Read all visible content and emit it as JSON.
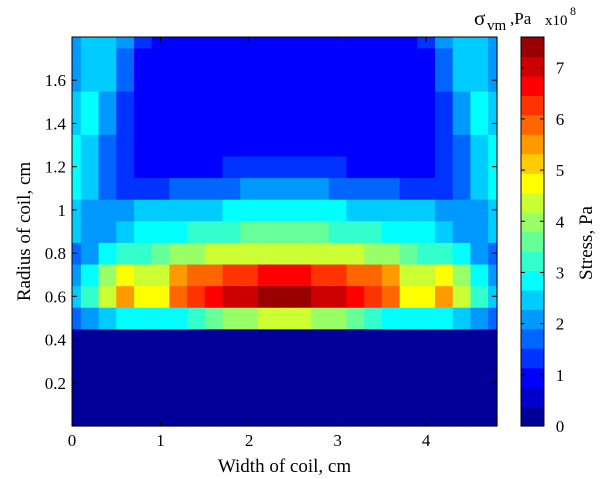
{
  "chart_data": {
    "type": "heatmap",
    "title": "",
    "xlabel": "Width of coil, cm",
    "ylabel": "Radius of coil, cm",
    "xlim": [
      0,
      4.8
    ],
    "ylim": [
      0,
      1.8
    ],
    "xticks": [
      0,
      1,
      2,
      3,
      4
    ],
    "yticks": [
      0.2,
      0.4,
      0.6,
      0.8,
      1,
      1.2,
      1.4,
      1.6
    ],
    "x": [
      0.0,
      0.2,
      0.4,
      0.6,
      0.8,
      1.0,
      1.2,
      1.4,
      1.6,
      1.8,
      2.0,
      2.2,
      2.4,
      2.6,
      2.8,
      3.0,
      3.2,
      3.4,
      3.6,
      3.8,
      4.0,
      4.2,
      4.4,
      4.6,
      4.8
    ],
    "y": [
      0.0,
      0.1,
      0.2,
      0.3,
      0.4,
      0.5,
      0.6,
      0.7,
      0.8,
      0.9,
      1.0,
      1.1,
      1.2,
      1.3,
      1.4,
      1.5,
      1.6,
      1.7,
      1.8
    ],
    "z_unit_multiplier": "1e8",
    "z": [
      [
        0.1,
        0.1,
        0.1,
        0.1,
        0.1,
        0.1,
        0.1,
        0.1,
        0.1,
        0.1,
        0.1,
        0.1,
        0.1,
        0.1,
        0.1,
        0.1,
        0.1,
        0.1,
        0.1,
        0.1,
        0.1,
        0.1,
        0.1,
        0.1,
        0.1
      ],
      [
        0.1,
        0.1,
        0.1,
        0.1,
        0.1,
        0.1,
        0.1,
        0.1,
        0.1,
        0.1,
        0.1,
        0.1,
        0.1,
        0.1,
        0.1,
        0.1,
        0.1,
        0.1,
        0.1,
        0.1,
        0.1,
        0.1,
        0.1,
        0.1,
        0.1
      ],
      [
        0.1,
        0.1,
        0.1,
        0.1,
        0.1,
        0.1,
        0.1,
        0.1,
        0.1,
        0.1,
        0.1,
        0.1,
        0.1,
        0.1,
        0.1,
        0.1,
        0.1,
        0.1,
        0.1,
        0.1,
        0.1,
        0.1,
        0.1,
        0.1,
        0.1
      ],
      [
        0.1,
        0.1,
        0.1,
        0.1,
        0.1,
        0.1,
        0.1,
        0.1,
        0.1,
        0.1,
        0.1,
        0.1,
        0.1,
        0.1,
        0.1,
        0.1,
        0.1,
        0.1,
        0.1,
        0.1,
        0.1,
        0.1,
        0.1,
        0.1,
        0.1
      ],
      [
        0.1,
        0.1,
        0.1,
        0.1,
        0.1,
        0.1,
        0.1,
        0.1,
        0.1,
        0.1,
        0.1,
        0.1,
        0.1,
        0.1,
        0.1,
        0.1,
        0.1,
        0.1,
        0.1,
        0.1,
        0.1,
        0.1,
        0.1,
        0.1,
        0.1
      ],
      [
        1.8,
        2.0,
        2.6,
        3.0,
        2.8,
        2.8,
        3.0,
        3.2,
        3.5,
        3.8,
        4.0,
        4.2,
        4.2,
        4.2,
        4.0,
        3.8,
        3.5,
        3.2,
        3.0,
        2.8,
        2.8,
        3.0,
        2.6,
        2.0,
        1.8
      ],
      [
        2.4,
        3.2,
        4.5,
        5.6,
        4.8,
        4.8,
        6.0,
        6.3,
        6.6,
        6.9,
        7.2,
        7.4,
        7.4,
        7.4,
        7.2,
        6.9,
        6.6,
        6.3,
        6.0,
        4.8,
        4.8,
        5.6,
        4.5,
        3.2,
        2.4
      ],
      [
        2.2,
        3.0,
        4.0,
        4.8,
        4.4,
        4.5,
        5.4,
        5.7,
        6.0,
        6.2,
        6.4,
        6.6,
        6.6,
        6.6,
        6.4,
        6.2,
        6.0,
        5.7,
        5.4,
        4.5,
        4.4,
        4.8,
        4.0,
        3.0,
        2.2
      ],
      [
        1.8,
        2.2,
        2.8,
        3.2,
        3.4,
        3.5,
        3.8,
        4.0,
        4.2,
        4.3,
        4.4,
        4.5,
        4.5,
        4.5,
        4.4,
        4.3,
        4.2,
        4.0,
        3.8,
        3.5,
        3.4,
        3.2,
        2.8,
        2.2,
        1.8
      ],
      [
        2.4,
        2.1,
        2.2,
        2.5,
        2.8,
        2.9,
        3.0,
        3.2,
        3.3,
        3.4,
        3.5,
        3.6,
        3.6,
        3.6,
        3.5,
        3.4,
        3.3,
        3.2,
        3.0,
        2.9,
        2.8,
        2.5,
        2.2,
        2.1,
        2.4
      ],
      [
        2.6,
        2.2,
        2.0,
        2.0,
        2.3,
        2.4,
        2.4,
        2.5,
        2.6,
        2.7,
        2.8,
        2.9,
        2.9,
        2.9,
        2.8,
        2.7,
        2.6,
        2.5,
        2.4,
        2.4,
        2.3,
        2.0,
        2.0,
        2.2,
        2.6
      ],
      [
        2.8,
        2.4,
        1.6,
        1.4,
        1.4,
        1.5,
        1.6,
        1.7,
        1.8,
        1.8,
        1.9,
        2.0,
        2.0,
        2.0,
        1.9,
        1.8,
        1.8,
        1.7,
        1.6,
        1.5,
        1.4,
        1.4,
        1.6,
        2.4,
        2.8
      ],
      [
        3.0,
        2.6,
        1.6,
        1.2,
        1.0,
        1.0,
        1.0,
        1.1,
        1.1,
        1.2,
        1.2,
        1.3,
        1.3,
        1.3,
        1.2,
        1.2,
        1.1,
        1.1,
        1.0,
        1.0,
        1.0,
        1.2,
        1.6,
        2.6,
        3.0
      ],
      [
        2.8,
        2.6,
        1.8,
        1.2,
        0.9,
        0.9,
        0.9,
        0.9,
        0.9,
        0.9,
        0.9,
        1.0,
        1.0,
        1.0,
        0.9,
        0.9,
        0.9,
        0.9,
        0.9,
        0.9,
        0.9,
        1.2,
        1.8,
        2.6,
        2.8
      ],
      [
        2.6,
        2.8,
        2.0,
        1.4,
        0.9,
        0.8,
        0.8,
        0.8,
        0.8,
        0.8,
        0.8,
        0.8,
        0.8,
        0.8,
        0.8,
        0.8,
        0.8,
        0.8,
        0.8,
        0.8,
        0.9,
        1.4,
        2.0,
        2.8,
        2.6
      ],
      [
        2.4,
        2.7,
        2.2,
        1.5,
        0.9,
        0.8,
        0.8,
        0.8,
        0.8,
        0.8,
        0.8,
        0.8,
        0.8,
        0.8,
        0.8,
        0.8,
        0.8,
        0.8,
        0.8,
        0.8,
        0.9,
        1.5,
        2.2,
        2.7,
        2.4
      ],
      [
        2.2,
        2.6,
        2.4,
        1.6,
        1.0,
        0.8,
        0.8,
        0.8,
        0.8,
        0.8,
        0.8,
        0.8,
        0.8,
        0.8,
        0.8,
        0.8,
        0.8,
        0.8,
        0.8,
        0.8,
        1.0,
        1.6,
        2.4,
        2.6,
        2.2
      ],
      [
        2.0,
        2.4,
        2.5,
        1.8,
        1.1,
        0.8,
        0.8,
        0.8,
        0.8,
        0.8,
        0.8,
        0.8,
        0.8,
        0.8,
        0.8,
        0.8,
        0.8,
        0.8,
        0.8,
        0.8,
        1.1,
        1.8,
        2.5,
        2.4,
        2.0
      ],
      [
        2.0,
        2.3,
        2.6,
        2.0,
        1.2,
        0.8,
        0.8,
        0.8,
        0.8,
        0.8,
        0.8,
        0.8,
        0.8,
        0.8,
        0.8,
        0.8,
        0.8,
        0.8,
        0.8,
        0.8,
        1.2,
        2.0,
        2.6,
        2.3,
        2.0
      ]
    ],
    "colorbar": {
      "label": "Stress, Pa",
      "title_symbol": "σ",
      "title_subscript": "vm",
      "title_unit": ",Pa",
      "multiplier_base": "x10",
      "multiplier_exp": "8",
      "range": [
        0,
        7.6
      ],
      "ticks": [
        0,
        1,
        2,
        3,
        4,
        5,
        6,
        7
      ]
    },
    "grid": false,
    "colormap": "jet"
  }
}
